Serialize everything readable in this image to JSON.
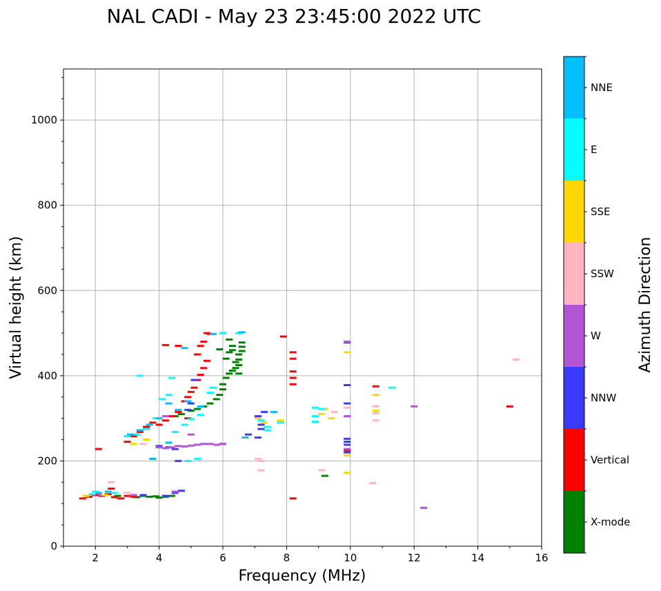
{
  "chart_data": {
    "type": "scatter",
    "title": "NAL CADI - May 23 23:45:00 2022 UTC",
    "xlabel": "Frequency (MHz)",
    "ylabel": "Virtual height (km)",
    "xlim": [
      1,
      16
    ],
    "ylim": [
      0,
      1120
    ],
    "xticks": [
      2,
      4,
      6,
      8,
      10,
      12,
      14,
      16
    ],
    "yticks": [
      0,
      200,
      400,
      600,
      800,
      1000
    ],
    "grid": true,
    "colorbar": {
      "title": "Azimuth Direction",
      "categories": [
        "X-mode",
        "Vertical",
        "NNW",
        "W",
        "SSW",
        "SSE",
        "E",
        "NNE"
      ],
      "colors": [
        "#008000",
        "#ff0000",
        "#3a3aff",
        "#b455d6",
        "#ffb6c1",
        "#ffd700",
        "#00ffff",
        "#00bfff"
      ]
    },
    "series": [
      {
        "name": "X-mode",
        "color": "#008000",
        "points": [
          [
            3.3,
            115
          ],
          [
            3.5,
            118
          ],
          [
            3.7,
            116
          ],
          [
            3.9,
            117
          ],
          [
            4.0,
            114
          ],
          [
            4.2,
            116
          ],
          [
            4.4,
            118
          ],
          [
            2.7,
            118
          ],
          [
            4.5,
            305
          ],
          [
            4.7,
            310
          ],
          [
            5.0,
            318
          ],
          [
            5.2,
            322
          ],
          [
            5.4,
            328
          ],
          [
            5.6,
            335
          ],
          [
            5.8,
            345
          ],
          [
            5.9,
            355
          ],
          [
            6.0,
            368
          ],
          [
            6.0,
            380
          ],
          [
            6.1,
            395
          ],
          [
            6.2,
            405
          ],
          [
            6.3,
            412
          ],
          [
            6.4,
            418
          ],
          [
            6.5,
            425
          ],
          [
            6.5,
            438
          ],
          [
            6.5,
            450
          ],
          [
            6.6,
            458
          ],
          [
            6.6,
            468
          ],
          [
            6.6,
            478
          ],
          [
            6.3,
            470
          ],
          [
            6.2,
            485
          ],
          [
            6.0,
            500
          ],
          [
            5.9,
            462
          ],
          [
            6.1,
            440
          ],
          [
            6.2,
            455
          ],
          [
            6.4,
            432
          ],
          [
            9.2,
            165
          ],
          [
            6.3,
            460
          ],
          [
            6.5,
            405
          ]
        ]
      },
      {
        "name": "Vertical",
        "color": "#ff0000",
        "points": [
          [
            1.6,
            112
          ],
          [
            1.8,
            116
          ],
          [
            2.0,
            120
          ],
          [
            2.2,
            118
          ],
          [
            2.4,
            122
          ],
          [
            2.6,
            115
          ],
          [
            2.8,
            112
          ],
          [
            3.0,
            118
          ],
          [
            3.2,
            116
          ],
          [
            2.5,
            135
          ],
          [
            3.0,
            245
          ],
          [
            3.2,
            258
          ],
          [
            3.4,
            268
          ],
          [
            3.6,
            280
          ],
          [
            3.8,
            290
          ],
          [
            4.0,
            285
          ],
          [
            4.2,
            295
          ],
          [
            4.4,
            305
          ],
          [
            4.6,
            315
          ],
          [
            4.8,
            340
          ],
          [
            4.9,
            350
          ],
          [
            5.0,
            362
          ],
          [
            5.1,
            372
          ],
          [
            5.2,
            390
          ],
          [
            5.3,
            402
          ],
          [
            5.4,
            418
          ],
          [
            5.2,
            450
          ],
          [
            5.3,
            470
          ],
          [
            5.4,
            480
          ],
          [
            5.5,
            500
          ],
          [
            5.6,
            498
          ],
          [
            5.5,
            435
          ],
          [
            4.2,
            472
          ],
          [
            4.6,
            470
          ],
          [
            4.9,
            300
          ],
          [
            2.1,
            228
          ],
          [
            7.9,
            492
          ],
          [
            8.2,
            455
          ],
          [
            8.2,
            440
          ],
          [
            8.2,
            410
          ],
          [
            8.2,
            395
          ],
          [
            8.2,
            380
          ],
          [
            8.2,
            112
          ],
          [
            9.9,
            378
          ],
          [
            9.9,
            225
          ],
          [
            10.8,
            375
          ],
          [
            15.0,
            328
          ]
        ]
      },
      {
        "name": "NNW",
        "color": "#3a3aff",
        "points": [
          [
            4.2,
            118
          ],
          [
            4.5,
            125
          ],
          [
            4.7,
            130
          ],
          [
            3.5,
            120
          ],
          [
            4.0,
            235
          ],
          [
            4.3,
            232
          ],
          [
            4.5,
            228
          ],
          [
            4.6,
            200
          ],
          [
            4.9,
            320
          ],
          [
            5.0,
            335
          ],
          [
            5.1,
            390
          ],
          [
            6.0,
            240
          ],
          [
            7.1,
            305
          ],
          [
            7.2,
            285
          ],
          [
            7.2,
            275
          ],
          [
            7.3,
            315
          ],
          [
            7.1,
            255
          ],
          [
            6.8,
            262
          ],
          [
            9.9,
            478
          ],
          [
            9.9,
            378
          ],
          [
            9.9,
            335
          ],
          [
            9.9,
            252
          ],
          [
            9.9,
            245
          ],
          [
            9.9,
            238
          ],
          [
            9.9,
            220
          ],
          [
            9.9,
            305
          ]
        ]
      },
      {
        "name": "W",
        "color": "#b455d6",
        "points": [
          [
            2.2,
            120
          ],
          [
            3.2,
            120
          ],
          [
            4.5,
            128
          ],
          [
            4.0,
            232
          ],
          [
            4.2,
            230
          ],
          [
            4.4,
            232
          ],
          [
            4.6,
            235
          ],
          [
            4.8,
            234
          ],
          [
            5.0,
            236
          ],
          [
            5.2,
            238
          ],
          [
            5.4,
            240
          ],
          [
            5.6,
            240
          ],
          [
            5.8,
            238
          ],
          [
            6.0,
            240
          ],
          [
            5.0,
            262
          ],
          [
            9.9,
            480
          ],
          [
            9.9,
            305
          ],
          [
            9.9,
            228
          ],
          [
            12.0,
            328
          ],
          [
            12.3,
            90
          ],
          [
            3.8,
            205
          ],
          [
            4.2,
            305
          ]
        ]
      },
      {
        "name": "SSW",
        "color": "#ffb6c1",
        "points": [
          [
            2.5,
            150
          ],
          [
            3.0,
            125
          ],
          [
            3.5,
            240
          ],
          [
            7.1,
            205
          ],
          [
            7.2,
            200
          ],
          [
            7.2,
            178
          ],
          [
            9.1,
            178
          ],
          [
            9.5,
            315
          ],
          [
            10.8,
            328
          ],
          [
            10.8,
            312
          ],
          [
            10.8,
            295
          ],
          [
            10.7,
            148
          ],
          [
            15.2,
            438
          ],
          [
            9.9,
            325
          ]
        ]
      },
      {
        "name": "SSE",
        "color": "#ffd700",
        "points": [
          [
            1.7,
            118
          ],
          [
            2.3,
            120
          ],
          [
            3.2,
            240
          ],
          [
            3.6,
            250
          ],
          [
            7.1,
            300
          ],
          [
            7.3,
            290
          ],
          [
            9.1,
            310
          ],
          [
            9.4,
            300
          ],
          [
            9.9,
            455
          ],
          [
            9.9,
            213
          ],
          [
            9.9,
            172
          ],
          [
            10.8,
            355
          ],
          [
            10.8,
            318
          ],
          [
            7.8,
            295
          ],
          [
            9.2,
            322
          ]
        ]
      },
      {
        "name": "E",
        "color": "#00ffff",
        "points": [
          [
            1.9,
            122
          ],
          [
            2.6,
            125
          ],
          [
            3.0,
            258
          ],
          [
            3.3,
            262
          ],
          [
            3.6,
            275
          ],
          [
            3.9,
            300
          ],
          [
            4.1,
            345
          ],
          [
            4.3,
            355
          ],
          [
            4.5,
            268
          ],
          [
            4.8,
            285
          ],
          [
            5.0,
            298
          ],
          [
            5.3,
            308
          ],
          [
            5.6,
            360
          ],
          [
            5.7,
            372
          ],
          [
            6.0,
            500
          ],
          [
            6.5,
            500
          ],
          [
            3.4,
            400
          ],
          [
            4.4,
            395
          ],
          [
            7.2,
            295
          ],
          [
            7.4,
            280
          ],
          [
            7.4,
            272
          ],
          [
            7.8,
            290
          ],
          [
            8.9,
            325
          ],
          [
            8.9,
            305
          ],
          [
            8.9,
            292
          ],
          [
            9.1,
            322
          ],
          [
            11.3,
            372
          ],
          [
            4.9,
            200
          ],
          [
            5.2,
            205
          ],
          [
            2.0,
            128
          ]
        ]
      },
      {
        "name": "NNE",
        "color": "#00bfff",
        "points": [
          [
            2.1,
            125
          ],
          [
            2.4,
            128
          ],
          [
            3.1,
            262
          ],
          [
            3.4,
            272
          ],
          [
            3.7,
            285
          ],
          [
            4.0,
            300
          ],
          [
            4.3,
            335
          ],
          [
            4.6,
            320
          ],
          [
            4.8,
            465
          ],
          [
            4.9,
            340
          ],
          [
            5.3,
            328
          ],
          [
            5.7,
            498
          ],
          [
            6.6,
            502
          ],
          [
            6.7,
            255
          ],
          [
            7.6,
            315
          ],
          [
            3.8,
            205
          ],
          [
            4.3,
            243
          ]
        ]
      }
    ]
  }
}
